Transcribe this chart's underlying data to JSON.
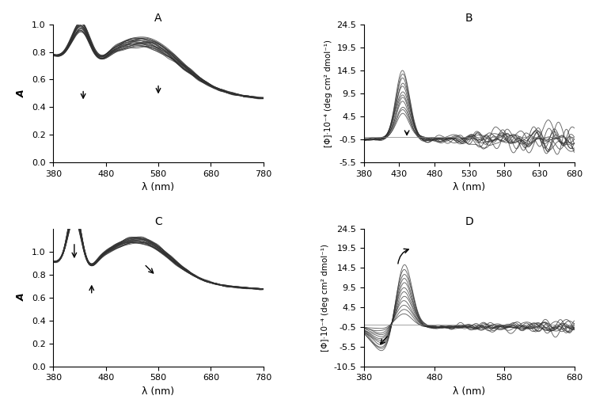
{
  "panel_A": {
    "title": "A",
    "ylabel": "A",
    "xlabel": "λ (nm)",
    "xlim": [
      380,
      780
    ],
    "ylim": [
      0,
      1.0
    ],
    "yticks": [
      0,
      0.2,
      0.4,
      0.6,
      0.8,
      1.0
    ],
    "xticks": [
      380,
      480,
      580,
      680,
      780
    ],
    "n_curves": 20
  },
  "panel_B": {
    "title": "B",
    "ylabel": "[Φ]·10⁻⁴ (deg cm² dmol⁻¹)",
    "xlabel": "λ (nm)",
    "xlim": [
      380,
      680
    ],
    "ylim": [
      -5.5,
      24.5
    ],
    "yticks": [
      -5.5,
      -0.5,
      4.5,
      9.5,
      14.5,
      19.5,
      24.5
    ],
    "ytick_labels": [
      "-5.5",
      "-0.5",
      "4.5",
      "9.5",
      "14.5",
      "19.5",
      "24.5"
    ],
    "xticks": [
      380,
      430,
      480,
      530,
      580,
      630,
      680
    ],
    "n_curves": 12
  },
  "panel_C": {
    "title": "C",
    "ylabel": "A",
    "xlabel": "λ (nm)",
    "xlim": [
      380,
      780
    ],
    "ylim": [
      0,
      1.2
    ],
    "yticks": [
      0,
      0.2,
      0.4,
      0.6,
      0.8,
      1.0
    ],
    "xticks": [
      380,
      480,
      580,
      680,
      780
    ],
    "n_curves": 20
  },
  "panel_D": {
    "title": "D",
    "ylabel": "[Φ]·10⁻⁴ (deg cm² dmol⁻¹)",
    "xlabel": "λ (nm)",
    "xlim": [
      380,
      680
    ],
    "ylim": [
      -10.5,
      24.5
    ],
    "yticks": [
      -10.5,
      -5.5,
      -0.5,
      4.5,
      9.5,
      14.5,
      19.5,
      24.5
    ],
    "ytick_labels": [
      "-10.5",
      "-5.5",
      "-0.5",
      "4.5",
      "9.5",
      "14.5",
      "19.5",
      "24.5"
    ],
    "xticks": [
      380,
      480,
      580,
      680
    ],
    "n_curves": 12
  },
  "line_color": "#303030",
  "line_alpha": 0.75,
  "line_width": 0.65,
  "font_size": 9,
  "title_font_size": 10,
  "label_font_size": 9
}
